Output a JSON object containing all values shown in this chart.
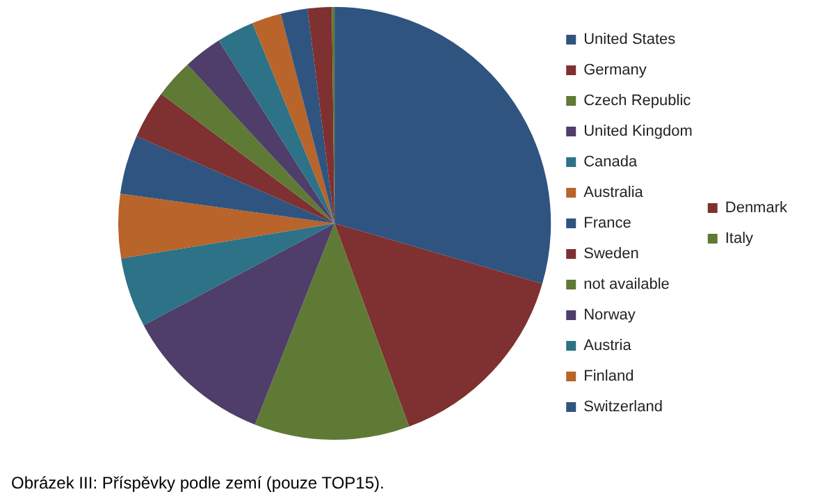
{
  "chart_data": {
    "type": "pie",
    "categories": [
      "United States",
      "Germany",
      "Czech Republic",
      "United Kingdom",
      "Canada",
      "Australia",
      "France",
      "Sweden",
      "not available",
      "Norway",
      "Austria",
      "Finland",
      "Switzerland",
      "Denmark",
      "Italy"
    ],
    "values": [
      29.5,
      14.9,
      11.6,
      11.2,
      5.2,
      4.8,
      4.4,
      3.6,
      2.9,
      2.9,
      2.8,
      2.2,
      2.0,
      1.8,
      0.2
    ],
    "colors": [
      "#2f5480",
      "#7f3030",
      "#5f7a35",
      "#4f3d6a",
      "#2d7287",
      "#b8642a",
      "#2f5480",
      "#7f3030",
      "#5f7a35",
      "#4f3d6a",
      "#2d7287",
      "#b8642a",
      "#2f5480",
      "#7f3030",
      "#5f7a35"
    ],
    "legend": "right",
    "annotations": [
      "Obrázek III: Příspěvky podle zemí (pouze TOP15)."
    ]
  }
}
